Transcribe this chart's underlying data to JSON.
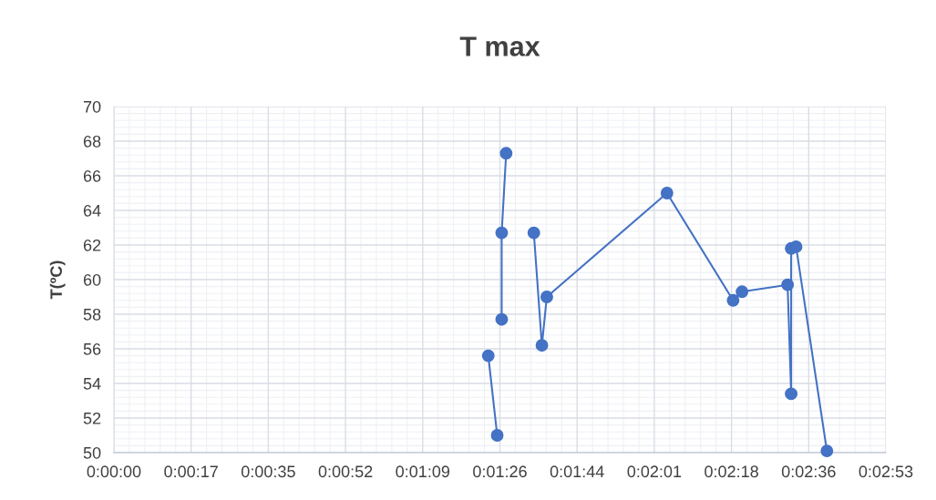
{
  "chart_data": {
    "type": "line",
    "title": "T max",
    "ylabel": "T(ºC)",
    "series": [
      {
        "color": "#4472c4",
        "x": [
          83.8,
          85.8
        ],
        "values": [
          55.6,
          51.0
        ]
      },
      {
        "color": "#4472c4",
        "x": [
          86.8,
          86.8,
          87.8
        ],
        "values": [
          57.7,
          62.7,
          67.3
        ]
      },
      {
        "color": "#4472c4",
        "x": [
          94.0,
          95.8,
          96.9,
          123.8,
          138.6,
          140.6,
          150.8,
          151.6,
          151.6,
          152.7,
          159.6
        ],
        "values": [
          62.7,
          56.2,
          59.0,
          65.0,
          58.8,
          59.3,
          59.7,
          53.4,
          61.8,
          61.9,
          50.1
        ]
      }
    ],
    "xlim": [
      0,
      172.8
    ],
    "xticks": [
      {
        "value": 0,
        "label": "0:00:00"
      },
      {
        "value": 17.28,
        "label": "0:00:17"
      },
      {
        "value": 34.56,
        "label": "0:00:35"
      },
      {
        "value": 51.84,
        "label": "0:00:52"
      },
      {
        "value": 69.12,
        "label": "0:01:09"
      },
      {
        "value": 86.4,
        "label": "0:01:26"
      },
      {
        "value": 103.68,
        "label": "0:01:44"
      },
      {
        "value": 120.96,
        "label": "0:02:01"
      },
      {
        "value": 138.24,
        "label": "0:02:18"
      },
      {
        "value": 155.52,
        "label": "0:02:36"
      },
      {
        "value": 172.8,
        "label": "0:02:53"
      }
    ],
    "ylim": [
      50,
      70
    ],
    "yticks": [
      50,
      52,
      54,
      56,
      58,
      60,
      62,
      64,
      66,
      68,
      70
    ],
    "grid": true,
    "marker": "circle",
    "line_style": "solid"
  }
}
